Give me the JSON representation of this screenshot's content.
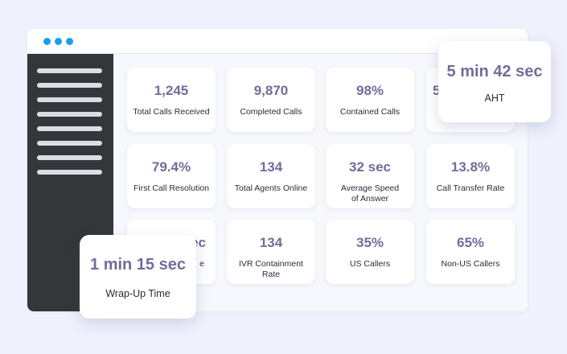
{
  "colors": {
    "background": "#eff1fc",
    "sidebar": "#333739",
    "window_dots": "#1aa0ea",
    "metric_value": "#6e6e9b"
  },
  "cards": [
    {
      "value": "1,245",
      "label": "Total Calls Received"
    },
    {
      "value": "9,870",
      "label": "Completed Calls"
    },
    {
      "value": "98%",
      "label": "Contained Calls"
    },
    {
      "value": "5",
      "label": ""
    },
    {
      "value": "79.4%",
      "label": "First Call Resolution"
    },
    {
      "value": "134",
      "label": "Total Agents Online"
    },
    {
      "value": "32 sec",
      "label": "Average Speed of Answer"
    },
    {
      "value": "13.8%",
      "label": "Call Transfer Rate"
    },
    {
      "value": "ec",
      "label": "e"
    },
    {
      "value": "134",
      "label": "IVR Containment Rate"
    },
    {
      "value": "35%",
      "label": "US Callers"
    },
    {
      "value": "65%",
      "label": "Non-US Callers"
    }
  ],
  "highlights": {
    "aht": {
      "value": "5 min 42 sec",
      "label": "AHT"
    },
    "wrap_up": {
      "value": "1 min 15 sec",
      "label": "Wrap-Up Time"
    }
  }
}
